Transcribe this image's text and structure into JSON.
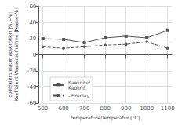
{
  "chart_data": {
    "type": "line",
    "xlabel": "temperature/Temperatur [°C]",
    "ylabel": "coefficient water absorption [%.--%]\nKoeffizient Wasseraufnahme [Masse-%]",
    "x": [
      500,
      600,
      700,
      800,
      900,
      1000,
      1100
    ],
    "series": [
      {
        "name": "Kaolinite/\nKaolinit",
        "color": "#555555",
        "marker": "square",
        "line_style": "solid",
        "values": [
          20,
          19,
          15,
          21,
          23,
          21,
          30
        ]
      },
      {
        "name": "- Fireclay",
        "color": "#555555",
        "marker": "circle",
        "line_style": "dashed",
        "values": [
          10,
          8,
          10,
          12,
          13,
          16,
          8
        ]
      }
    ],
    "xlim": [
      480,
      1120
    ],
    "ylim": [
      -60,
      60
    ],
    "xticks": [
      500,
      600,
      700,
      800,
      900,
      1000,
      1100
    ],
    "yticks": [
      -60,
      -40,
      -20,
      0,
      20,
      40,
      60
    ],
    "grid": true,
    "legend": "lower left"
  }
}
